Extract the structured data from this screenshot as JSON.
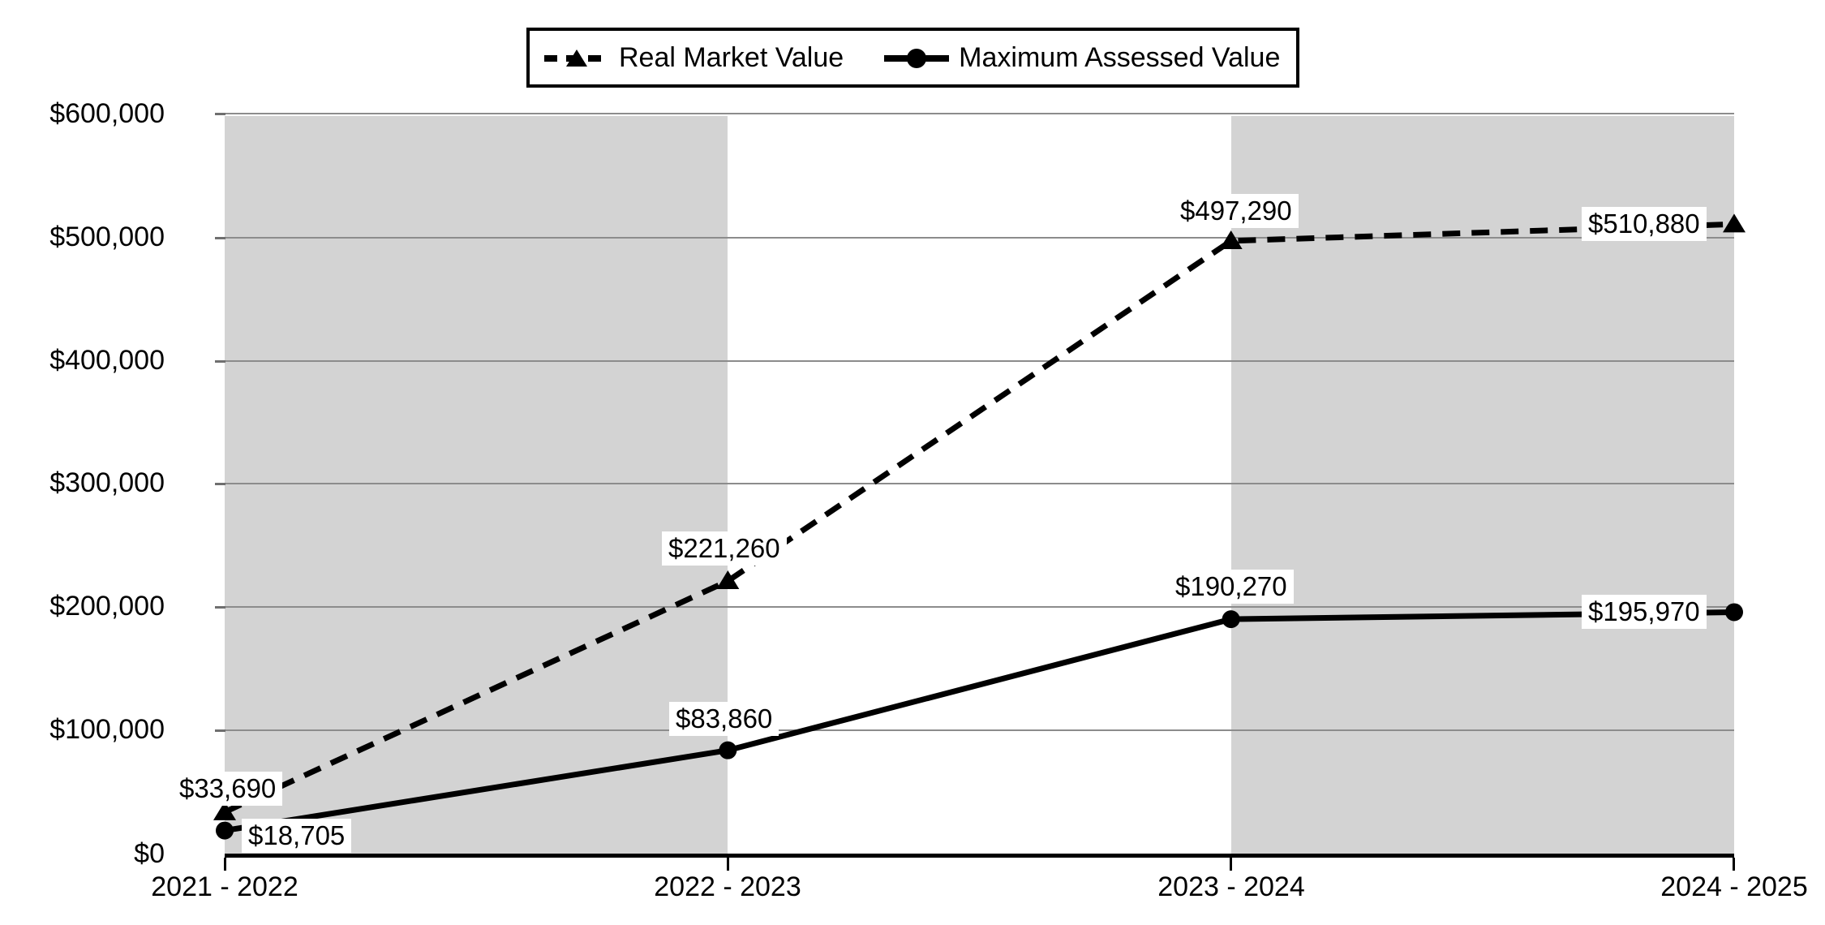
{
  "legend": {
    "items": [
      {
        "label": "Real Market Value"
      },
      {
        "label": "Maximum Assessed Value"
      }
    ]
  },
  "chart_data": {
    "type": "line",
    "categories": [
      "2021 - 2022",
      "2022 - 2023",
      "2023 - 2024",
      "2024 - 2025"
    ],
    "series": [
      {
        "name": "Real Market Value",
        "marker": "triangle",
        "line_style": "dashed",
        "color": "#000000",
        "values": [
          33690,
          221260,
          497290,
          510880
        ],
        "labels": [
          "$33,690",
          "$221,260",
          "$497,290",
          "$510,880"
        ]
      },
      {
        "name": "Maximum Assessed Value",
        "marker": "circle",
        "line_style": "solid",
        "color": "#000000",
        "values": [
          18705,
          83860,
          190270,
          195970
        ],
        "labels": [
          "$18,705",
          "$83,860",
          "$190,270",
          "$195,970"
        ]
      }
    ],
    "xlabel": "",
    "ylabel": "",
    "title": "",
    "ylim": [
      0,
      600000
    ],
    "ytick_step": 100000,
    "ytick_labels": [
      "$600,000",
      "$500,000",
      "$400,000",
      "$300,000",
      "$200,000",
      "$100,000",
      "$0"
    ],
    "grid": "horizontal",
    "legend_position": "top-center",
    "plot_band_color": "#d3d3d3",
    "gridline_color": "#8c8c8c",
    "background_color": "#ffffff"
  }
}
